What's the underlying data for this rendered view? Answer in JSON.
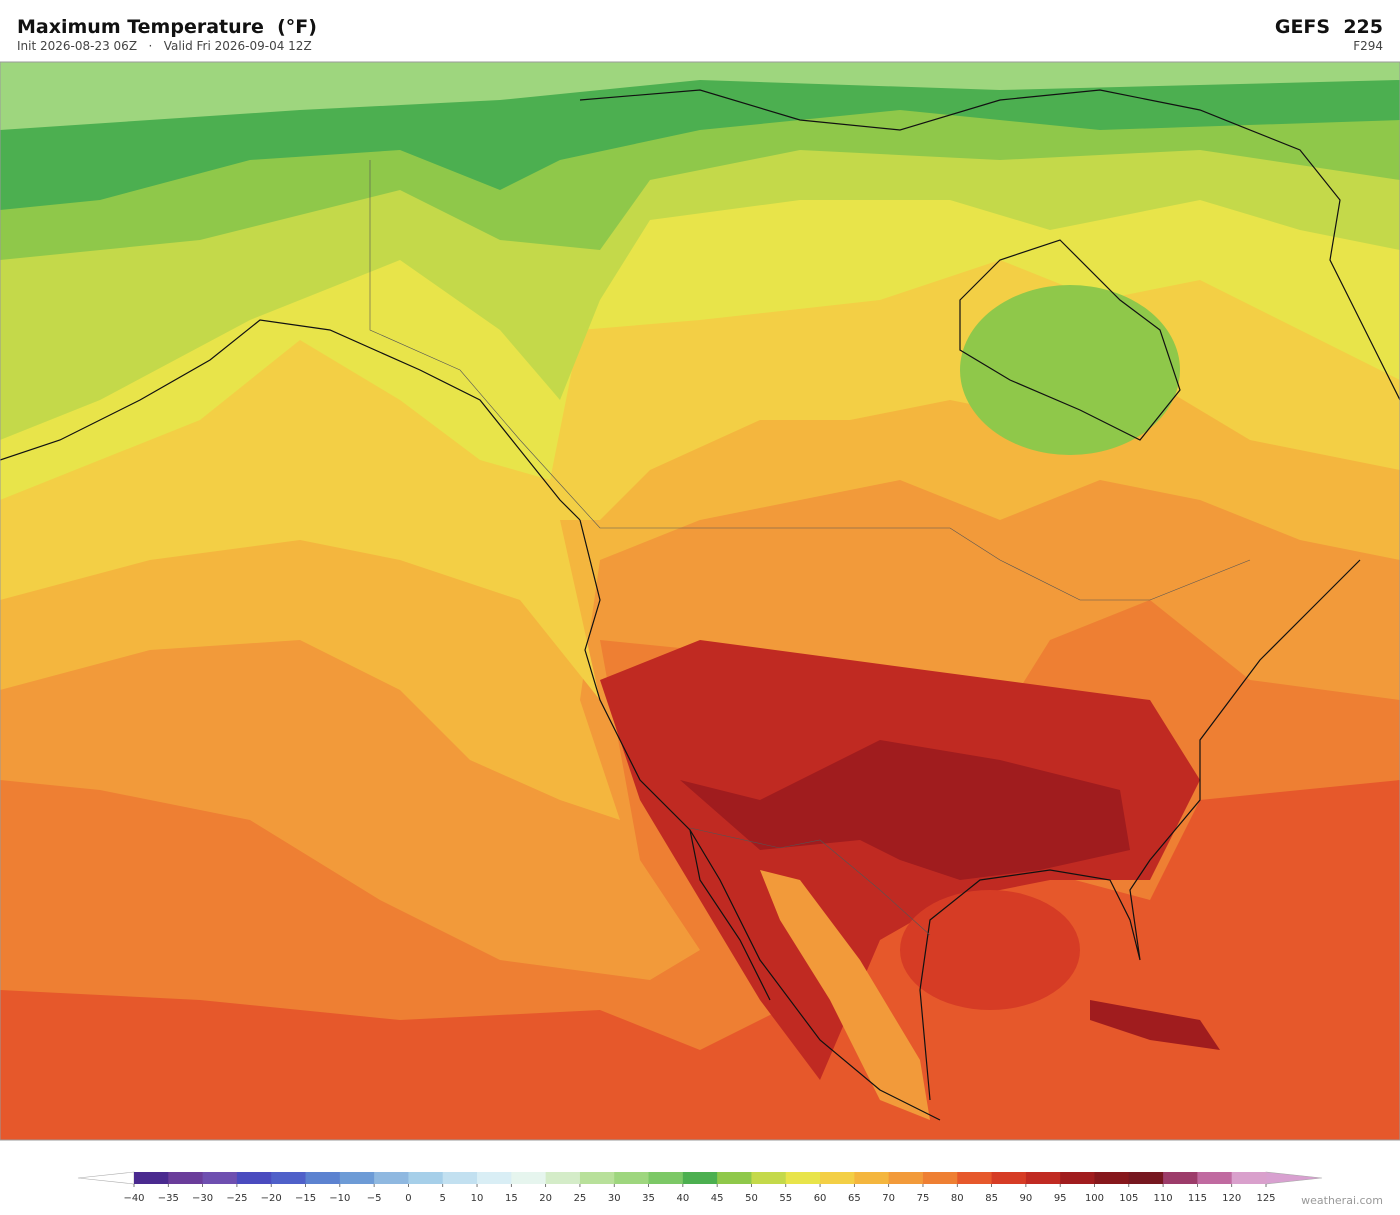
{
  "header": {
    "title": "Maximum Temperature  (°F)",
    "init": "Init 2026-08-23 06Z",
    "separator": "·",
    "valid": "Valid Fri 2026-09-04 12Z",
    "model": "GEFS  225",
    "forecast_hour": "F294"
  },
  "colorbar": {
    "ticks": [
      {
        "value": -40,
        "label": "−40"
      },
      {
        "value": -35,
        "label": "−35"
      },
      {
        "value": -30,
        "label": "−30"
      },
      {
        "value": -25,
        "label": "−25"
      },
      {
        "value": -20,
        "label": "−20"
      },
      {
        "value": -15,
        "label": "−15"
      },
      {
        "value": -10,
        "label": "−10"
      },
      {
        "value": -5,
        "label": "−5"
      },
      0,
      5,
      10,
      15,
      20,
      25,
      30,
      35,
      40,
      45,
      50,
      55,
      60,
      65,
      70,
      75,
      80,
      85,
      90,
      95,
      100,
      105,
      110,
      115,
      120,
      125
    ],
    "colors": [
      "#4a2a8f",
      "#6a3d9a",
      "#6e4fb0",
      "#4a4bbf",
      "#4f60c9",
      "#5c82d0",
      "#6d9bd6",
      "#8fb8e0",
      "#a6cfe9",
      "#c2e0f0",
      "#d9eef5",
      "#e6f5ee",
      "#d4ecc8",
      "#b8e09a",
      "#9ed67e",
      "#7cc866",
      "#4caf50",
      "#8fc84a",
      "#c4d94a",
      "#e8e44a",
      "#f3cf45",
      "#f4b63e",
      "#f29a3a",
      "#ee7f33",
      "#e6582b",
      "#d63c25",
      "#c02a22",
      "#a01c1e",
      "#86171c",
      "#761720",
      "#9c3c6a",
      "#c06aa0",
      "#d9a0cc"
    ],
    "under_color": "#ffffff",
    "over_color": "#d8a0d0"
  },
  "watermark": "weatherai.com"
}
